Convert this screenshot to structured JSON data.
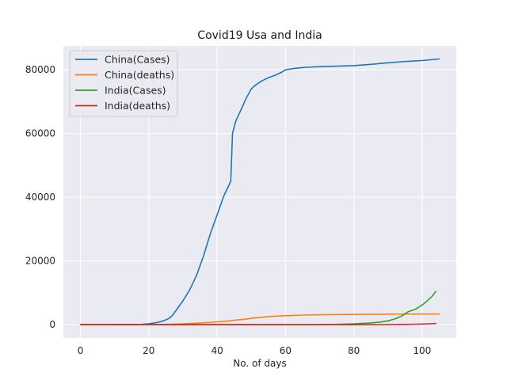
{
  "chart_data": {
    "type": "line",
    "title": "Covid19 Usa and India",
    "xlabel": "No. of days",
    "ylabel": "",
    "xlim": [
      -5,
      110
    ],
    "ylim": [
      -4200,
      87500
    ],
    "xticks": [
      0,
      20,
      40,
      60,
      80,
      100
    ],
    "yticks": [
      0,
      20000,
      40000,
      60000,
      80000
    ],
    "grid": true,
    "legend_position": "top-left",
    "series": [
      {
        "name": "China(Cases)",
        "color": "#1f77b4",
        "points": [
          [
            0,
            0
          ],
          [
            10,
            0
          ],
          [
            18,
            100
          ],
          [
            20,
            300
          ],
          [
            22,
            600
          ],
          [
            24,
            1100
          ],
          [
            26,
            2000
          ],
          [
            27,
            3000
          ],
          [
            28,
            4500
          ],
          [
            30,
            7500
          ],
          [
            32,
            11000
          ],
          [
            34,
            15500
          ],
          [
            36,
            21500
          ],
          [
            38,
            28500
          ],
          [
            40,
            34500
          ],
          [
            42,
            40500
          ],
          [
            44,
            45000
          ],
          [
            44.5,
            60000
          ],
          [
            45.5,
            64000
          ],
          [
            47,
            67500
          ],
          [
            48.5,
            71000
          ],
          [
            50,
            74000
          ],
          [
            51,
            75000
          ],
          [
            53,
            76500
          ],
          [
            55,
            77500
          ],
          [
            57,
            78300
          ],
          [
            59,
            79300
          ],
          [
            60,
            80000
          ],
          [
            63,
            80500
          ],
          [
            66,
            80800
          ],
          [
            70,
            81000
          ],
          [
            80,
            81300
          ],
          [
            85,
            81700
          ],
          [
            90,
            82200
          ],
          [
            95,
            82600
          ],
          [
            100,
            82900
          ],
          [
            105,
            83400
          ]
        ]
      },
      {
        "name": "China(deaths)",
        "color": "#ff7f0e",
        "points": [
          [
            0,
            0
          ],
          [
            20,
            10
          ],
          [
            25,
            80
          ],
          [
            30,
            250
          ],
          [
            35,
            500
          ],
          [
            38,
            700
          ],
          [
            40,
            900
          ],
          [
            43,
            1100
          ],
          [
            45,
            1400
          ],
          [
            48,
            1700
          ],
          [
            50,
            2000
          ],
          [
            52,
            2200
          ],
          [
            56,
            2600
          ],
          [
            60,
            2800
          ],
          [
            65,
            3000
          ],
          [
            70,
            3100
          ],
          [
            80,
            3200
          ],
          [
            90,
            3300
          ],
          [
            100,
            3330
          ],
          [
            105,
            3340
          ]
        ]
      },
      {
        "name": "India(Cases)",
        "color": "#2ca02c",
        "points": [
          [
            0,
            0
          ],
          [
            60,
            5
          ],
          [
            70,
            30
          ],
          [
            75,
            100
          ],
          [
            80,
            250
          ],
          [
            85,
            550
          ],
          [
            88,
            850
          ],
          [
            90,
            1200
          ],
          [
            92,
            1800
          ],
          [
            94,
            2700
          ],
          [
            95,
            3400
          ],
          [
            96,
            4100
          ],
          [
            98,
            4800
          ],
          [
            99,
            5500
          ],
          [
            100,
            6200
          ],
          [
            101,
            7000
          ],
          [
            102,
            8000
          ],
          [
            103,
            9000
          ],
          [
            104,
            10400
          ]
        ]
      },
      {
        "name": "India(deaths)",
        "color": "#d62728",
        "points": [
          [
            0,
            0
          ],
          [
            80,
            5
          ],
          [
            90,
            30
          ],
          [
            95,
            80
          ],
          [
            98,
            150
          ],
          [
            100,
            200
          ],
          [
            102,
            270
          ],
          [
            104,
            340
          ]
        ]
      }
    ]
  }
}
